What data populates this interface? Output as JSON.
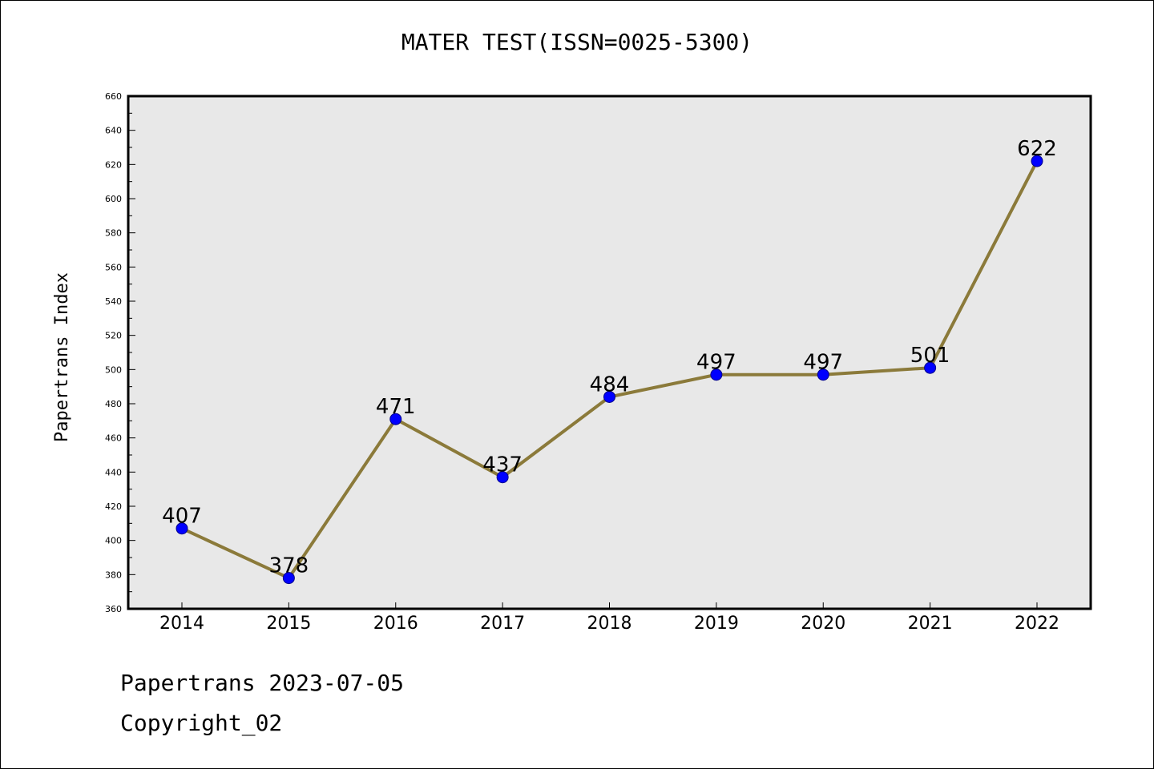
{
  "chart_data": {
    "type": "line",
    "title": "MATER TEST(ISSN=0025-5300)",
    "xlabel": "",
    "ylabel": "Papertrans Index",
    "categories": [
      "2014",
      "2015",
      "2016",
      "2017",
      "2018",
      "2019",
      "2020",
      "2021",
      "2022"
    ],
    "values": [
      407,
      378,
      471,
      437,
      484,
      497,
      497,
      501,
      622
    ],
    "data_labels": [
      "407",
      "378",
      "471",
      "437",
      "484",
      "497",
      "497",
      "501",
      "622"
    ],
    "ylim": [
      360,
      660
    ],
    "y_ticks": [
      "360",
      "380",
      "400",
      "420",
      "440",
      "460",
      "480",
      "500",
      "520",
      "540",
      "560",
      "580",
      "600",
      "620",
      "640",
      "660"
    ],
    "grid": false,
    "plot_background": "#e8e8e8",
    "line_color": "#8b7a3a",
    "marker_color": "#0000ff"
  },
  "footer": {
    "line1": "Papertrans 2023-07-05",
    "line2": "Copyright_02"
  }
}
